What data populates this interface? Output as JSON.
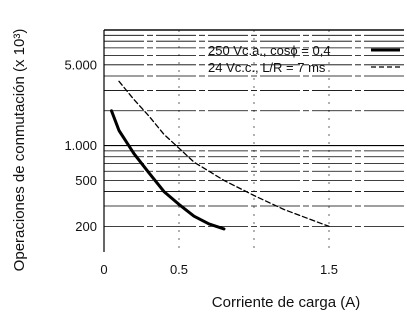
{
  "chart_data": {
    "type": "line",
    "xlabel": "Corriente de carga (A)",
    "ylabel": "Operaciones de conmutación (x 10³)",
    "y_scale": "log",
    "xlim": [
      0,
      2.0
    ],
    "ylim": [
      120,
      10000
    ],
    "x_ticks": [
      {
        "value": 0,
        "label": "0"
      },
      {
        "value": 0.5,
        "label": "0.5"
      },
      {
        "value": 1.0,
        "label": ""
      },
      {
        "value": 1.5,
        "label": "1.5"
      }
    ],
    "y_ticks": [
      {
        "value": 5000,
        "label": "5.000"
      },
      {
        "value": 1000,
        "label": "1.000"
      },
      {
        "value": 500,
        "label": "500"
      },
      {
        "value": 200,
        "label": "200"
      }
    ],
    "grid": true,
    "legend_position": "top-right",
    "series": [
      {
        "name": "250 Vc.a., cosϕ = 0,4",
        "style": "solid",
        "color": "#000000",
        "x": [
          0.05,
          0.1,
          0.2,
          0.3,
          0.4,
          0.5,
          0.6,
          0.7,
          0.8
        ],
        "y": [
          2000,
          1350,
          850,
          580,
          400,
          310,
          245,
          210,
          190
        ]
      },
      {
        "name": "24 Vc.c., L/R = 7 ms",
        "style": "dashed",
        "color": "#000000",
        "x": [
          0.1,
          0.2,
          0.3,
          0.4,
          0.5,
          0.6,
          0.8,
          1.0,
          1.2,
          1.5
        ],
        "y": [
          3600,
          2500,
          1800,
          1250,
          950,
          720,
          500,
          370,
          280,
          200
        ]
      }
    ]
  }
}
